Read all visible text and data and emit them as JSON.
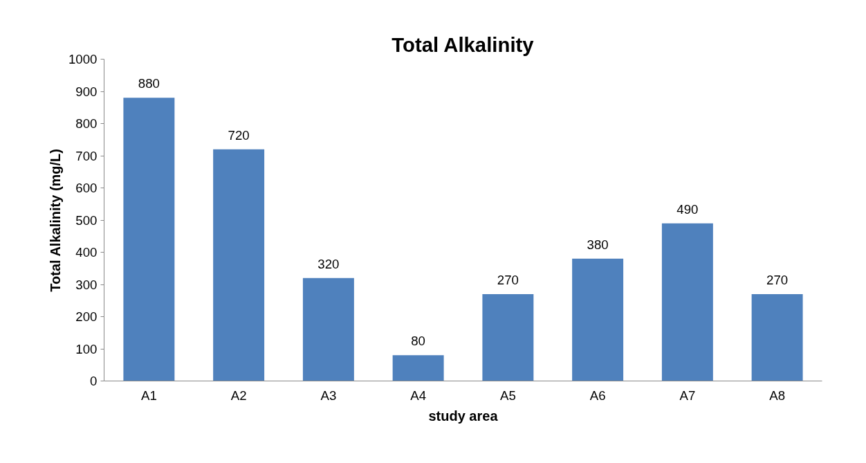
{
  "chart_data": {
    "type": "bar",
    "title": "Total Alkalinity",
    "xlabel": "study area",
    "ylabel": "Total Alkalinity (mg/L)",
    "categories": [
      "A1",
      "A2",
      "A3",
      "A4",
      "A5",
      "A6",
      "A7",
      "A8"
    ],
    "values": [
      880,
      720,
      320,
      80,
      270,
      380,
      490,
      270
    ],
    "color": "#4f81bd",
    "ylim": [
      0,
      1000
    ],
    "yticks": [
      0,
      100,
      200,
      300,
      400,
      500,
      600,
      700,
      800,
      900,
      1000
    ],
    "grid": false,
    "data_labels": true
  }
}
